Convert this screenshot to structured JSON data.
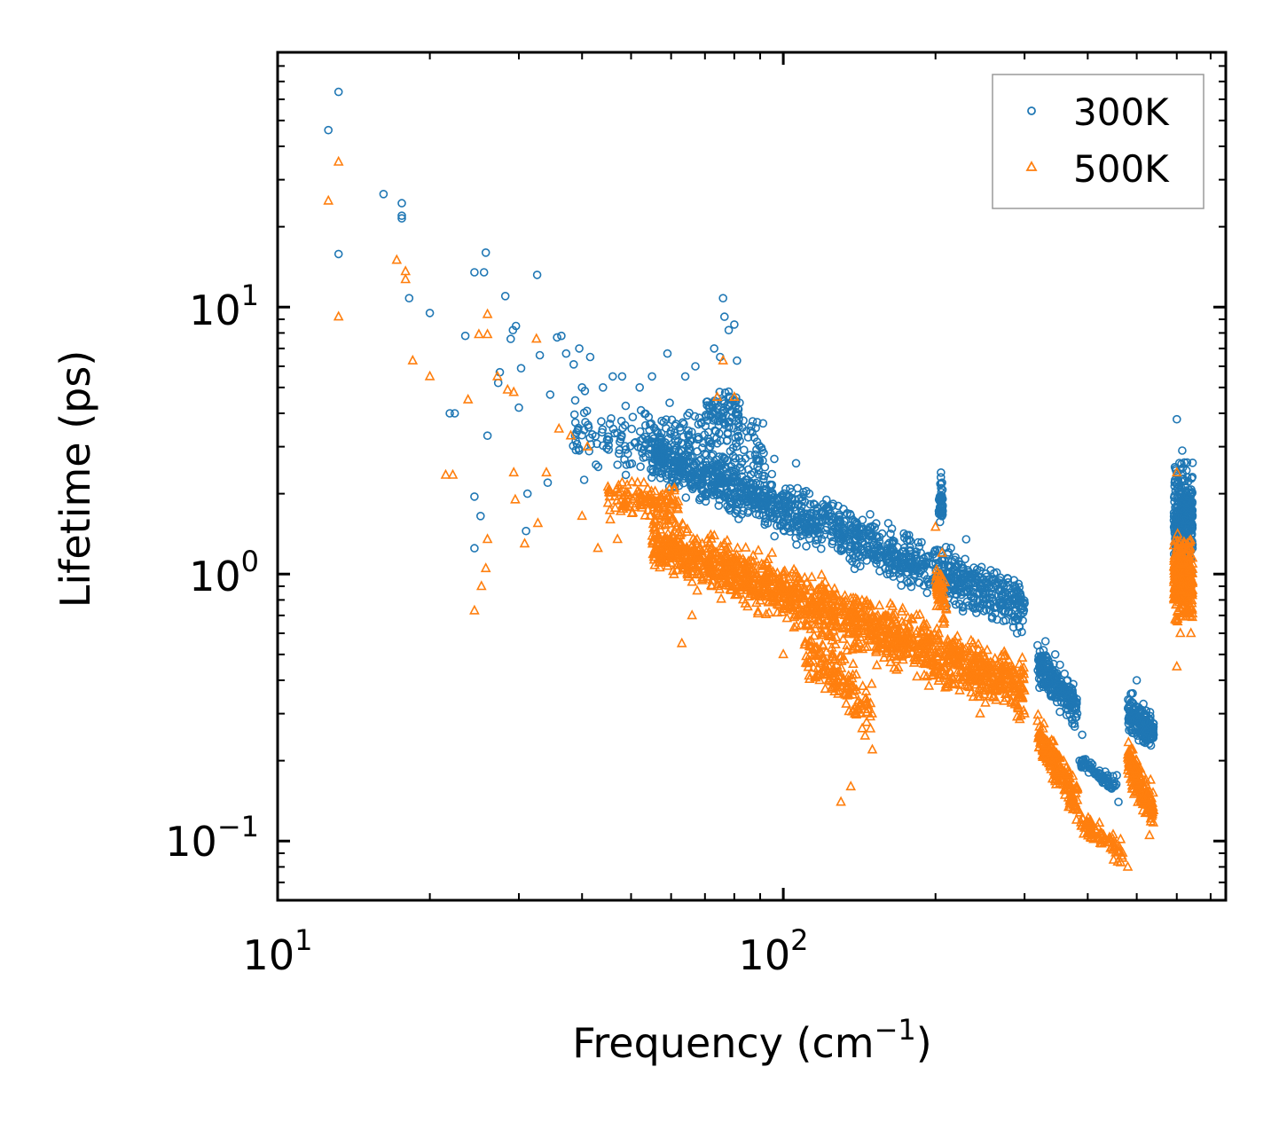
{
  "chart_data": {
    "type": "scatter",
    "title": "",
    "xlabel": "Frequency (cm",
    "xlabel_sup": "−1",
    "xlabel_end": ")",
    "ylabel": "Lifetime (ps)",
    "xscale": "log",
    "yscale": "log",
    "xlim": [
      10,
      750
    ],
    "ylim": [
      0.06,
      90
    ],
    "x_tick_labels": [
      {
        "value": 10,
        "base": "10",
        "exp": "1"
      },
      {
        "value": 100,
        "base": "10",
        "exp": "2"
      }
    ],
    "y_tick_labels": [
      {
        "value": 0.1,
        "base": "10",
        "exp": "−1"
      },
      {
        "value": 1,
        "base": "10",
        "exp": "0"
      },
      {
        "value": 10,
        "base": "10",
        "exp": "1"
      }
    ],
    "legend_position": "top-right",
    "series": [
      {
        "name": "300K",
        "label": "300K",
        "marker": "circle",
        "color": "#1f77b4",
        "points": [
          [
            12.6,
            46.0
          ],
          [
            13.2,
            64.0
          ],
          [
            13.2,
            15.8
          ],
          [
            16.2,
            26.5
          ],
          [
            17.6,
            24.5
          ],
          [
            17.6,
            22.0
          ],
          [
            17.6,
            21.5
          ],
          [
            18.2,
            10.8
          ],
          [
            20.0,
            9.5
          ],
          [
            21.9,
            4.0
          ],
          [
            22.4,
            4.0
          ],
          [
            23.5,
            7.8
          ],
          [
            24.5,
            13.5
          ],
          [
            25.6,
            13.5
          ],
          [
            25.8,
            16.0
          ],
          [
            24.5,
            1.25
          ],
          [
            24.5,
            1.95
          ],
          [
            25.2,
            1.65
          ],
          [
            26.0,
            3.3
          ],
          [
            27.3,
            5.2
          ],
          [
            27.5,
            5.7
          ],
          [
            28.2,
            11.0
          ],
          [
            28.9,
            7.6
          ],
          [
            29.2,
            8.2
          ],
          [
            29.6,
            8.5
          ],
          [
            30.0,
            4.2
          ],
          [
            30.3,
            5.9
          ],
          [
            31.0,
            1.45
          ],
          [
            31.2,
            2.0
          ],
          [
            32.6,
            13.2
          ],
          [
            33.0,
            6.6
          ],
          [
            34.2,
            2.2
          ],
          [
            34.6,
            4.7
          ],
          [
            35.7,
            7.7
          ],
          [
            36.4,
            7.8
          ],
          [
            37.2,
            6.7
          ],
          [
            38.5,
            6.1
          ],
          [
            39.5,
            7.0
          ],
          [
            40.0,
            5.0
          ],
          [
            41.5,
            6.5
          ],
          [
            44.0,
            5.0
          ],
          [
            46.0,
            5.5
          ],
          [
            48.0,
            5.5
          ],
          [
            52.0,
            5.0
          ],
          [
            55.0,
            5.5
          ],
          [
            59.0,
            6.7
          ],
          [
            64.0,
            5.5
          ],
          [
            67.0,
            6.0
          ],
          [
            73.0,
            7.0
          ],
          [
            75.0,
            6.5
          ],
          [
            76.0,
            10.8
          ],
          [
            76.5,
            9.2
          ],
          [
            78.0,
            8.2
          ],
          [
            80.0,
            8.6
          ],
          [
            81.0,
            6.3
          ],
          [
            88.0,
            2.8
          ],
          [
            96.0,
            2.7
          ],
          [
            106.0,
            2.6
          ],
          [
            125.0,
            1.8
          ],
          [
            160.0,
            1.2
          ],
          [
            205.0,
            2.4
          ],
          [
            206.0,
            2.2
          ],
          [
            230.0,
            1.35
          ],
          [
            290.0,
            0.6
          ],
          [
            330.0,
            0.56
          ],
          [
            345.0,
            0.5
          ],
          [
            370.0,
            0.32
          ],
          [
            390.0,
            0.25
          ],
          [
            420.0,
            0.18
          ],
          [
            460.0,
            0.14
          ],
          [
            500.0,
            0.4
          ],
          [
            540.0,
            0.25
          ],
          [
            600.0,
            3.8
          ],
          [
            615.0,
            2.9
          ],
          [
            640.0,
            1.0
          ]
        ]
      },
      {
        "name": "500K",
        "label": "500K",
        "marker": "triangle",
        "color": "#ff7f0e",
        "points": [
          [
            12.6,
            25.0
          ],
          [
            13.2,
            35.0
          ],
          [
            13.2,
            9.2
          ],
          [
            17.2,
            15.0
          ],
          [
            17.9,
            13.6
          ],
          [
            17.9,
            12.7
          ],
          [
            18.5,
            6.3
          ],
          [
            20.0,
            5.5
          ],
          [
            21.5,
            2.35
          ],
          [
            22.2,
            2.35
          ],
          [
            23.8,
            4.5
          ],
          [
            25.0,
            7.9
          ],
          [
            26.0,
            9.4
          ],
          [
            26.0,
            7.9
          ],
          [
            24.5,
            0.73
          ],
          [
            25.3,
            0.9
          ],
          [
            25.8,
            1.05
          ],
          [
            26.0,
            1.35
          ],
          [
            27.2,
            5.5
          ],
          [
            28.5,
            4.9
          ],
          [
            29.3,
            4.8
          ],
          [
            29.3,
            2.4
          ],
          [
            29.5,
            1.9
          ],
          [
            30.8,
            1.3
          ],
          [
            32.5,
            7.6
          ],
          [
            32.7,
            1.55
          ],
          [
            34.0,
            2.4
          ],
          [
            36.0,
            3.5
          ],
          [
            38.0,
            3.3
          ],
          [
            40.0,
            1.65
          ],
          [
            41.0,
            3.0
          ],
          [
            43.0,
            1.25
          ],
          [
            45.5,
            1.6
          ],
          [
            47.0,
            1.35
          ],
          [
            48.0,
            2.2
          ],
          [
            53.0,
            2.2
          ],
          [
            58.0,
            1.8
          ],
          [
            60.0,
            1.1
          ],
          [
            63.0,
            0.55
          ],
          [
            66.0,
            0.7
          ],
          [
            74.0,
            4.6
          ],
          [
            76.0,
            6.3
          ],
          [
            80.0,
            4.6
          ],
          [
            83.0,
            0.9
          ],
          [
            95.0,
            1.2
          ],
          [
            100.0,
            0.5
          ],
          [
            118.0,
            0.4
          ],
          [
            130.0,
            0.14
          ],
          [
            136.0,
            0.16
          ],
          [
            150.0,
            0.22
          ],
          [
            200.0,
            1.5
          ],
          [
            206.0,
            1.2
          ],
          [
            210.0,
            0.5
          ],
          [
            245.0,
            0.3
          ],
          [
            300.0,
            0.3
          ],
          [
            330.0,
            0.24
          ],
          [
            345.0,
            0.17
          ],
          [
            380.0,
            0.12
          ],
          [
            415.0,
            0.11
          ],
          [
            450.0,
            0.085
          ],
          [
            480.0,
            0.08
          ],
          [
            500.0,
            0.2
          ],
          [
            530.0,
            0.105
          ],
          [
            600.0,
            2.4
          ],
          [
            600.0,
            0.45
          ],
          [
            610.0,
            0.6
          ],
          [
            640.0,
            0.6
          ]
        ]
      }
    ],
    "bulk_clusters": [
      {
        "series": "300K",
        "x_range": [
          38,
          92
        ],
        "y_center_at_start": 3.3,
        "y_center_at_end": 2.9,
        "y_spread_decades": 0.18,
        "count": 260,
        "seed": 11
      },
      {
        "series": "300K",
        "x_range": [
          55,
          300
        ],
        "y_center_at_start": 2.8,
        "y_center_at_end": 0.75,
        "y_spread_decades": 0.13,
        "count": 1300,
        "seed": 12
      },
      {
        "series": "300K",
        "x_range": [
          70,
          82
        ],
        "y_center_at_start": 4.2,
        "y_center_at_end": 4.0,
        "y_spread_decades": 0.1,
        "count": 70,
        "seed": 13
      },
      {
        "series": "300K",
        "x_range": [
          203,
          207
        ],
        "y_center_at_start": 1.9,
        "y_center_at_end": 1.9,
        "y_spread_decades": 0.12,
        "count": 40,
        "seed": 14
      },
      {
        "series": "300K",
        "x_range": [
          318,
          382
        ],
        "y_center_at_start": 0.47,
        "y_center_at_end": 0.31,
        "y_spread_decades": 0.11,
        "count": 200,
        "seed": 15
      },
      {
        "series": "300K",
        "x_range": [
          385,
          460
        ],
        "y_center_at_start": 0.2,
        "y_center_at_end": 0.16,
        "y_spread_decades": 0.05,
        "count": 70,
        "seed": 16
      },
      {
        "series": "300K",
        "x_range": [
          480,
          540
        ],
        "y_center_at_start": 0.31,
        "y_center_at_end": 0.25,
        "y_spread_decades": 0.1,
        "count": 180,
        "seed": 17
      },
      {
        "series": "300K",
        "x_range": [
          592,
          645
        ],
        "y_center_at_start": 1.6,
        "y_center_at_end": 1.6,
        "y_spread_decades": 0.26,
        "count": 340,
        "seed": 18
      },
      {
        "series": "500K",
        "x_range": [
          45,
          62
        ],
        "y_center_at_start": 2.0,
        "y_center_at_end": 1.8,
        "y_spread_decades": 0.08,
        "count": 120,
        "seed": 21
      },
      {
        "series": "500K",
        "x_range": [
          55,
          300
        ],
        "y_center_at_start": 1.35,
        "y_center_at_end": 0.37,
        "y_spread_decades": 0.15,
        "count": 1500,
        "seed": 22
      },
      {
        "series": "500K",
        "x_range": [
          110,
          150
        ],
        "y_center_at_start": 0.55,
        "y_center_at_end": 0.3,
        "y_spread_decades": 0.15,
        "count": 160,
        "seed": 23
      },
      {
        "series": "500K",
        "x_range": [
          200,
          210
        ],
        "y_center_at_start": 0.9,
        "y_center_at_end": 0.8,
        "y_spread_decades": 0.14,
        "count": 50,
        "seed": 24
      },
      {
        "series": "500K",
        "x_range": [
          318,
          382
        ],
        "y_center_at_start": 0.25,
        "y_center_at_end": 0.14,
        "y_spread_decades": 0.1,
        "count": 200,
        "seed": 25
      },
      {
        "series": "500K",
        "x_range": [
          385,
          470
        ],
        "y_center_at_start": 0.12,
        "y_center_at_end": 0.09,
        "y_spread_decades": 0.06,
        "count": 80,
        "seed": 26
      },
      {
        "series": "500K",
        "x_range": [
          480,
          540
        ],
        "y_center_at_start": 0.2,
        "y_center_at_end": 0.13,
        "y_spread_decades": 0.11,
        "count": 180,
        "seed": 27
      },
      {
        "series": "500K",
        "x_range": [
          592,
          645
        ],
        "y_center_at_start": 0.95,
        "y_center_at_end": 0.95,
        "y_spread_decades": 0.2,
        "count": 340,
        "seed": 28
      }
    ]
  }
}
